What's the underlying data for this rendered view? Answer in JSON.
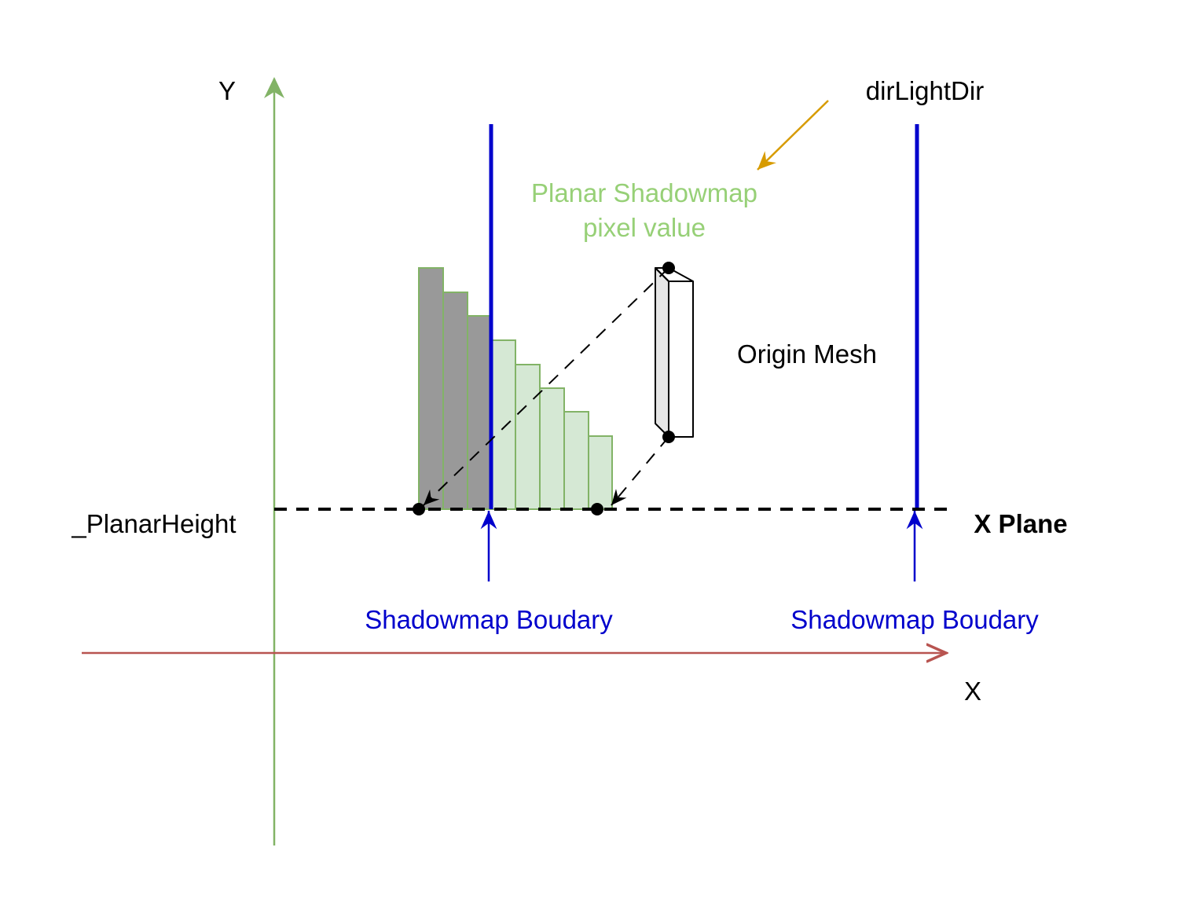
{
  "labels": {
    "y_axis": "Y",
    "x_axis": "X",
    "light_dir": "dirLightDir",
    "shadowmap_value_line1": "Planar Shadowmap",
    "shadowmap_value_line2": "pixel value",
    "origin_mesh": "Origin Mesh",
    "planar_height": "_PlanarHeight",
    "x_plane": "X Plane",
    "boundary_left": "Shadowmap Boudary",
    "boundary_right": "Shadowmap Boudary"
  },
  "colors": {
    "y_axis": "#82b366",
    "x_axis": "#b85450",
    "boundary": "#0000cc",
    "light_arrow": "#d79b00",
    "shadow_out": "#999999",
    "shadow_in": "#d5e8d4",
    "shadow_stroke": "#82b366",
    "mesh_front": "#ffffff",
    "mesh_side": "#e6e6e6",
    "planar_label": "#97d077",
    "boundary_label": "#0000cc"
  },
  "icons": {
    "axis_arrow": "open-arrowhead-icon",
    "light_arrow": "light-direction-arrow-icon",
    "point_marker": "black-dot-icon"
  }
}
